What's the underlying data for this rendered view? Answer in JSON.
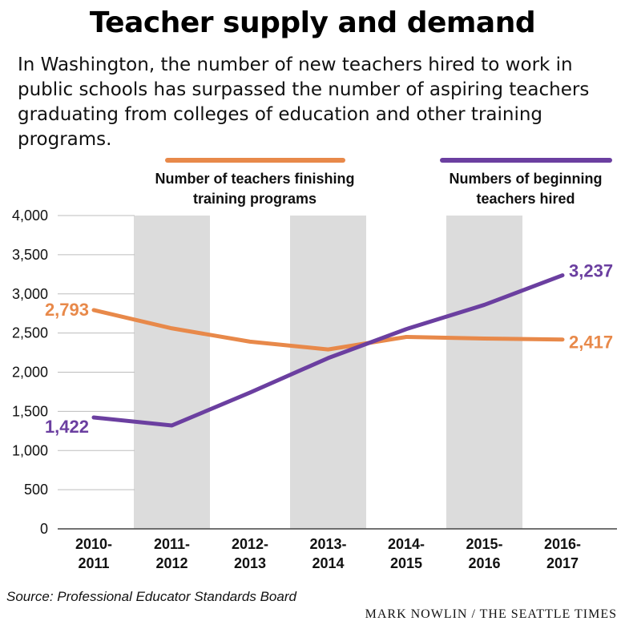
{
  "title": "Teacher supply and demand",
  "subtitle": "In Washington, the number of new teachers hired to work in public schools has surpassed the number of aspiring teachers graduating from colleges of education and other training programs.",
  "source": "Source: Professional Educator Standards Board",
  "credit": "MARK NOWLIN / THE SEATTLE TIMES",
  "colors": {
    "orange": "#e8894a",
    "purple": "#6b3fa0",
    "band": "#dcdcdc",
    "grid": "#bdbdbd"
  },
  "chart_data": {
    "type": "line",
    "categories": [
      [
        "2010-",
        "2011"
      ],
      [
        "2011-",
        "2012"
      ],
      [
        "2012-",
        "2013"
      ],
      [
        "2013-",
        "2014"
      ],
      [
        "2014-",
        "2015"
      ],
      [
        "2015-",
        "2016"
      ],
      [
        "2016-",
        "2017"
      ]
    ],
    "ylim": [
      0,
      4000
    ],
    "yticks": [
      0,
      500,
      1000,
      1500,
      2000,
      2500,
      3000,
      3500,
      4000
    ],
    "ytick_labels": [
      "0",
      "500",
      "1,000",
      "1,500",
      "2,000",
      "2,500",
      "3,000",
      "3,500",
      "4,000"
    ],
    "shaded_categories": [
      1,
      3,
      5
    ],
    "grid": true,
    "series": [
      {
        "name": "Number of teachers finishing training programs",
        "color": "#e8894a",
        "values": [
          2793,
          2560,
          2390,
          2290,
          2450,
          2430,
          2417
        ],
        "end_labels": {
          "start": "2,793",
          "end": "2,417"
        }
      },
      {
        "name": "Numbers of beginning teachers hired",
        "color": "#6b3fa0",
        "values": [
          1422,
          1320,
          1740,
          2180,
          2550,
          2860,
          3237
        ],
        "end_labels": {
          "start": "1,422",
          "end": "3,237"
        }
      }
    ]
  }
}
